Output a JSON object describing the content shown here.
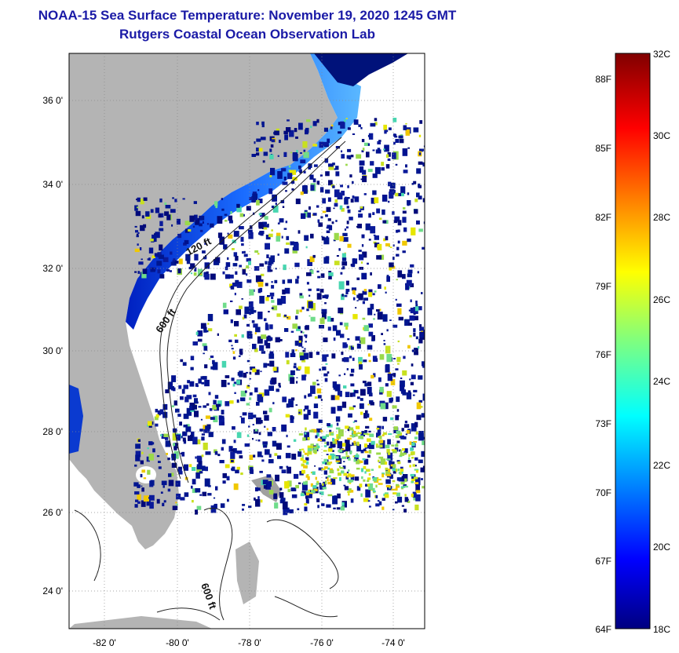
{
  "header": {
    "title": "NOAA-15 Sea Surface Temperature:  November 19, 2020 1245 GMT",
    "subtitle": "Rutgers Coastal Ocean Observation Lab"
  },
  "map": {
    "lat_ticks": [
      "36 0'",
      "34 0'",
      "32 0'",
      "30 0'",
      "28 0'",
      "26 0'",
      "24 0'"
    ],
    "lon_ticks": [
      "-82 0'",
      "-80 0'",
      "-78 0'",
      "-76 0'",
      "-74 0'"
    ],
    "contour_labels": [
      "120 ft",
      "600 ft",
      "600 ft"
    ]
  },
  "colorbar": {
    "fahrenheit": [
      "88F",
      "85F",
      "82F",
      "79F",
      "76F",
      "73F",
      "70F",
      "67F",
      "64F"
    ],
    "celsius": [
      "32C",
      "30C",
      "28C",
      "26C",
      "24C",
      "22C",
      "20C",
      "18C"
    ]
  },
  "colors": {
    "land": "#b4b4b4",
    "title": "#1a1aa6",
    "cold_water": "#000c80",
    "warm_water": "#e6e600"
  }
}
